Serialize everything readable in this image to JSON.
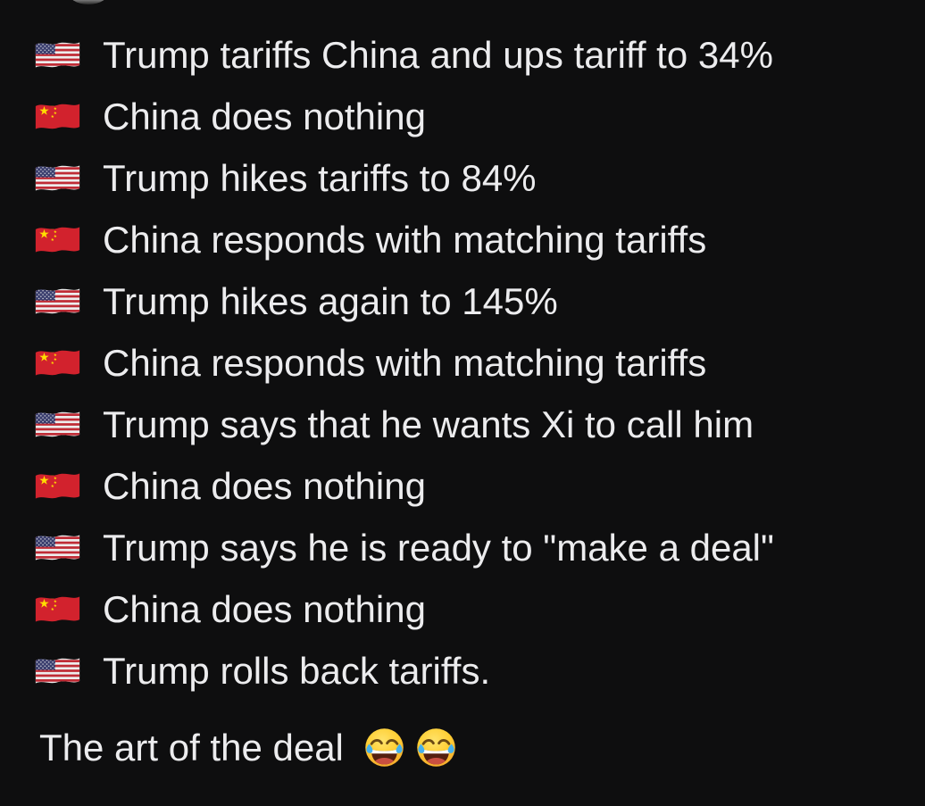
{
  "colors": {
    "background": "#0e0e0f",
    "text": "#ececee",
    "us_flag_red": "#BF2B35",
    "us_flag_blue": "#3A3E6E",
    "china_flag_red": "#D2222D",
    "star_yellow": "#FFDE00",
    "emoji_yellow": "#FFCE33",
    "tear_blue": "#45B1ED"
  },
  "lines": [
    {
      "flag": "us",
      "text": "Trump tariffs China and ups tariff to 34%"
    },
    {
      "flag": "cn",
      "text": "China does nothing"
    },
    {
      "flag": "us",
      "text": "Trump hikes tariffs to 84%"
    },
    {
      "flag": "cn",
      "text": "China responds with matching tariffs"
    },
    {
      "flag": "us",
      "text": "Trump hikes again to 145%"
    },
    {
      "flag": "cn",
      "text": "China responds with matching tariffs"
    },
    {
      "flag": "us",
      "text": "Trump says that he wants Xi to call him"
    },
    {
      "flag": "cn",
      "text": "China does nothing"
    },
    {
      "flag": "us",
      "text": "Trump says he is ready to \"make a deal\""
    },
    {
      "flag": "cn",
      "text": "China does nothing"
    },
    {
      "flag": "us",
      "text": "Trump rolls back tariffs."
    }
  ],
  "caption": {
    "text": "The art of the deal",
    "emojis": [
      "face-with-tears-of-joy-emoji",
      "face-with-tears-of-joy-emoji"
    ]
  }
}
